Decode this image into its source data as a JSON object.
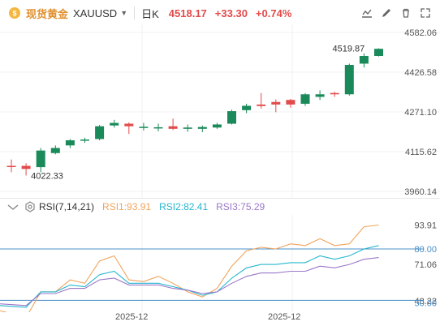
{
  "header": {
    "title": "现货黄金",
    "symbol": "XAUUSD",
    "interval": "日K",
    "last_price": "4518.17",
    "change": "+33.30",
    "change_pct": "+0.74%"
  },
  "toolbar": {
    "icons": [
      "chart-type-icon",
      "draw-icon",
      "delete-icon",
      "fullscreen-icon"
    ]
  },
  "colors": {
    "up": "#1a8a5a",
    "down": "#e24b4b",
    "rsi1": "#f0a45d",
    "rsi2": "#27b6cf",
    "rsi3": "#9b78c9",
    "ref_line": "#4a90c8",
    "label_blue": "#4a90c8"
  },
  "main_axis": {
    "labels": [
      "4582.06",
      "4426.58",
      "4271.10",
      "4115.62",
      "3960.14"
    ],
    "high_label": "4519.87",
    "low_label": "4022.33"
  },
  "rsi": {
    "params": "RSI(7,14,21)",
    "rsi1_label": "RSI1:93.91",
    "rsi2_label": "RSI2:82.41",
    "rsi3_label": "RSI3:75.29",
    "axis_labels": [
      "93.91",
      "80.00",
      "71.06",
      "48.22",
      "50.00"
    ]
  },
  "x_axis": {
    "labels": [
      "2025-12",
      "2025-12"
    ]
  },
  "chart_data": {
    "type": "candlestick",
    "candles": [
      {
        "o": 4060,
        "h": 4085,
        "l": 4035,
        "c": 4058
      },
      {
        "o": 4060,
        "h": 4070,
        "l": 4022,
        "c": 4048
      },
      {
        "o": 4055,
        "h": 4130,
        "l": 4035,
        "c": 4120
      },
      {
        "o": 4110,
        "h": 4140,
        "l": 4105,
        "c": 4130
      },
      {
        "o": 4140,
        "h": 4165,
        "l": 4130,
        "c": 4160
      },
      {
        "o": 4160,
        "h": 4170,
        "l": 4150,
        "c": 4163
      },
      {
        "o": 4165,
        "h": 4220,
        "l": 4160,
        "c": 4215
      },
      {
        "o": 4218,
        "h": 4240,
        "l": 4210,
        "c": 4228
      },
      {
        "o": 4225,
        "h": 4230,
        "l": 4185,
        "c": 4215
      },
      {
        "o": 4210,
        "h": 4228,
        "l": 4198,
        "c": 4213
      },
      {
        "o": 4208,
        "h": 4225,
        "l": 4195,
        "c": 4211
      },
      {
        "o": 4215,
        "h": 4245,
        "l": 4200,
        "c": 4205
      },
      {
        "o": 4205,
        "h": 4222,
        "l": 4193,
        "c": 4210
      },
      {
        "o": 4205,
        "h": 4218,
        "l": 4192,
        "c": 4212
      },
      {
        "o": 4210,
        "h": 4228,
        "l": 4205,
        "c": 4222
      },
      {
        "o": 4225,
        "h": 4280,
        "l": 4222,
        "c": 4274
      },
      {
        "o": 4278,
        "h": 4303,
        "l": 4266,
        "c": 4295
      },
      {
        "o": 4300,
        "h": 4345,
        "l": 4284,
        "c": 4294
      },
      {
        "o": 4310,
        "h": 4320,
        "l": 4270,
        "c": 4300
      },
      {
        "o": 4318,
        "h": 4322,
        "l": 4288,
        "c": 4300
      },
      {
        "o": 4303,
        "h": 4345,
        "l": 4295,
        "c": 4340
      },
      {
        "o": 4330,
        "h": 4355,
        "l": 4318,
        "c": 4340
      },
      {
        "o": 4345,
        "h": 4350,
        "l": 4330,
        "c": 4340
      },
      {
        "o": 4340,
        "h": 4460,
        "l": 4335,
        "c": 4455
      },
      {
        "o": 4460,
        "h": 4500,
        "l": 4445,
        "c": 4490
      },
      {
        "o": 4490,
        "h": 4520,
        "l": 4488,
        "c": 4518
      }
    ],
    "y_range": [
      3960.14,
      4582.06
    ],
    "rsi_series": [
      {
        "name": "RSI1",
        "values": [
          44,
          40,
          55,
          55,
          62,
          60,
          73,
          76,
          62,
          61,
          64,
          60,
          55,
          52,
          57,
          70,
          79,
          81,
          80,
          83,
          82,
          86,
          82,
          83,
          93,
          94
        ]
      },
      {
        "name": "RSI2",
        "values": [
          47,
          46,
          55,
          55,
          59,
          58,
          65,
          67,
          60,
          60,
          60,
          58,
          56,
          53,
          55,
          63,
          69,
          71,
          71,
          72,
          72,
          76,
          74,
          76,
          80,
          82
        ]
      },
      {
        "name": "RSI3",
        "values": [
          48,
          47,
          54,
          54,
          57,
          57,
          62,
          63,
          59,
          59,
          59,
          57,
          56,
          54,
          55,
          60,
          64,
          66,
          66,
          67,
          67,
          70,
          69,
          71,
          74,
          75
        ]
      }
    ],
    "rsi_range": [
      45,
      98
    ]
  }
}
